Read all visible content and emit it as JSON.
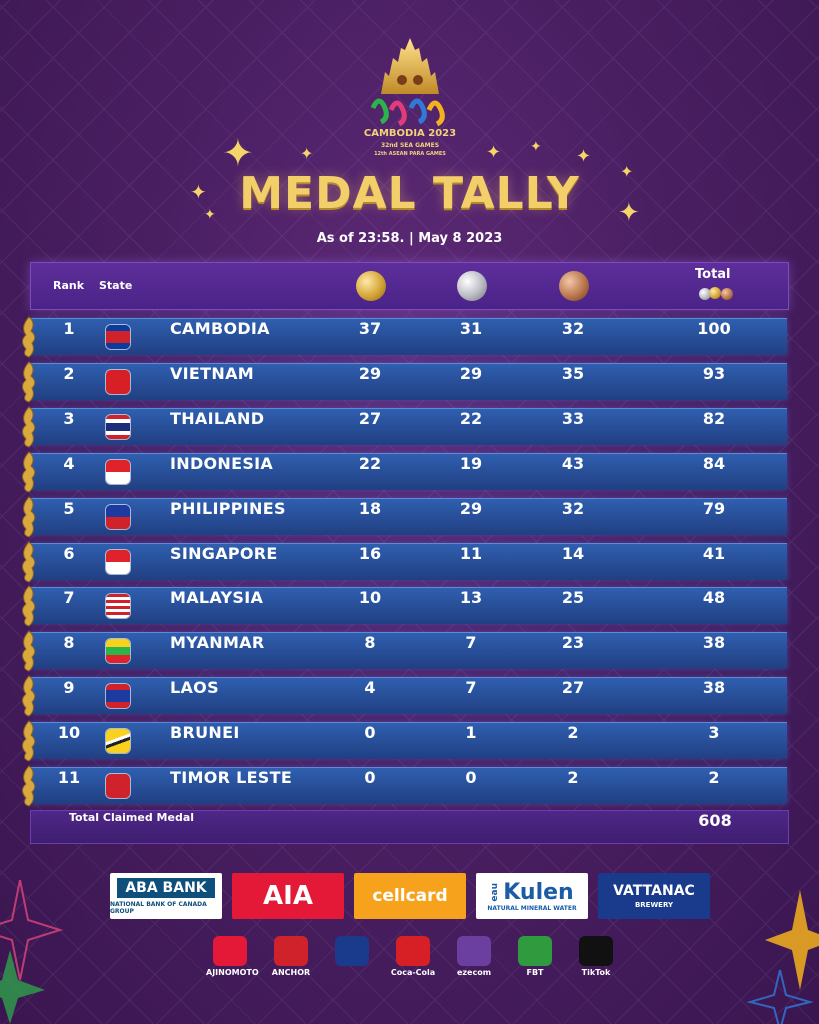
{
  "logo": {
    "line1": "CAMBODIA 2023",
    "line2": "32nd SEA GAMES",
    "line3": "12th ASEAN PARA GAMES"
  },
  "title": "MEDAL TALLY",
  "as_of": "As of 23:58. | May 8 2023",
  "header": {
    "rank": "Rank",
    "state": "State",
    "total": "Total"
  },
  "rows": [
    {
      "rank": "1",
      "country": "CAMBODIA",
      "gold": "37",
      "silver": "31",
      "bronze": "32",
      "total": "100"
    },
    {
      "rank": "2",
      "country": "VIETNAM",
      "gold": "29",
      "silver": "29",
      "bronze": "35",
      "total": "93"
    },
    {
      "rank": "3",
      "country": "THAILAND",
      "gold": "27",
      "silver": "22",
      "bronze": "33",
      "total": "82"
    },
    {
      "rank": "4",
      "country": "INDONESIA",
      "gold": "22",
      "silver": "19",
      "bronze": "43",
      "total": "84"
    },
    {
      "rank": "5",
      "country": "PHILIPPINES",
      "gold": "18",
      "silver": "29",
      "bronze": "32",
      "total": "79"
    },
    {
      "rank": "6",
      "country": "SINGAPORE",
      "gold": "16",
      "silver": "11",
      "bronze": "14",
      "total": "41"
    },
    {
      "rank": "7",
      "country": "MALAYSIA",
      "gold": "10",
      "silver": "13",
      "bronze": "25",
      "total": "48"
    },
    {
      "rank": "8",
      "country": "MYANMAR",
      "gold": "8",
      "silver": "7",
      "bronze": "23",
      "total": "38"
    },
    {
      "rank": "9",
      "country": "LAOS",
      "gold": "4",
      "silver": "7",
      "bronze": "27",
      "total": "38"
    },
    {
      "rank": "10",
      "country": "BRUNEI",
      "gold": "0",
      "silver": "1",
      "bronze": "2",
      "total": "3"
    },
    {
      "rank": "11",
      "country": "TIMOR LESTE",
      "gold": "0",
      "silver": "0",
      "bronze": "2",
      "total": "2"
    }
  ],
  "total_claimed": {
    "label": "Total Claimed Medal",
    "value": "608"
  },
  "sponsors": {
    "aba": {
      "main": "ABA BANK",
      "sub": "NATIONAL BANK OF CANADA GROUP"
    },
    "aia": {
      "main": "AIA"
    },
    "cellcard": {
      "main": "cellcard"
    },
    "kulen": {
      "main": "Kulen",
      "side": "eau",
      "sub": "NATURAL MINERAL WATER"
    },
    "vattanac": {
      "main": "VATTANAC",
      "sub": "BREWERY"
    }
  },
  "small_sponsors": [
    "AJINOMOTO",
    "ANCHOR",
    "",
    "Coca-Cola",
    "ezecom",
    "FBT",
    "TikTok"
  ],
  "colors": {
    "background": "#4a1f62",
    "title_gold": "#f3cf6a",
    "row_blue": "#284f99",
    "header_purple": "#5e2e9a"
  }
}
